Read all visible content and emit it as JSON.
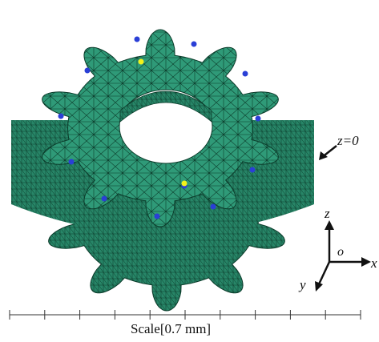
{
  "labels": {
    "plane": "z=0",
    "axis_z": "z",
    "axis_x": "x",
    "axis_y": "y",
    "origin": "o",
    "scale": "Scale[0.7 mm]"
  },
  "colors": {
    "mesh_fill": "#2f9a78",
    "mesh_side": "#278567",
    "mesh_lines": "#0b3b2a",
    "node_blue": "#2a3fd6",
    "node_yellow": "#f2f21a",
    "text": "#111111"
  },
  "gear": {
    "teeth": 10,
    "sensor_nodes_blue": 12,
    "sensor_nodes_yellow": 2
  },
  "scale_bar": {
    "major_ticks": 10
  }
}
